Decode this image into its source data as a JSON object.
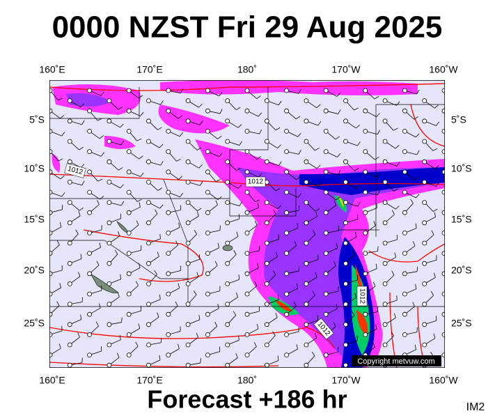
{
  "header": {
    "title": "0000 NZST Fri 29 Aug 2025"
  },
  "map": {
    "top_labels": [
      "160˚E",
      "170˚E",
      "180˚",
      "170˚W",
      "160˚W"
    ],
    "bottom_labels": [
      "160˚E",
      "170˚E",
      "180˚",
      "170˚W",
      "160˚W"
    ],
    "left_labels": [
      "5˚S",
      "10˚S",
      "15˚S",
      "20˚S",
      "25˚S"
    ],
    "right_labels": [
      "5˚S",
      "10˚S",
      "15˚S",
      "20˚S",
      "25˚S"
    ],
    "isobar_labels": [
      "1012",
      "1012",
      "1012",
      "1012"
    ],
    "copyright": "Copyright metvuw.com"
  },
  "footer": {
    "forecast": "Forecast +186 hr",
    "code": "IM2"
  }
}
